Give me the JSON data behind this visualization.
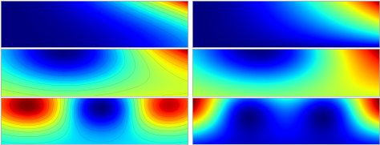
{
  "cmap": "jet",
  "figsize": [
    4.74,
    1.81
  ],
  "dpi": 100,
  "border_color": "#aaaaaa",
  "border_lw": 0.5
}
